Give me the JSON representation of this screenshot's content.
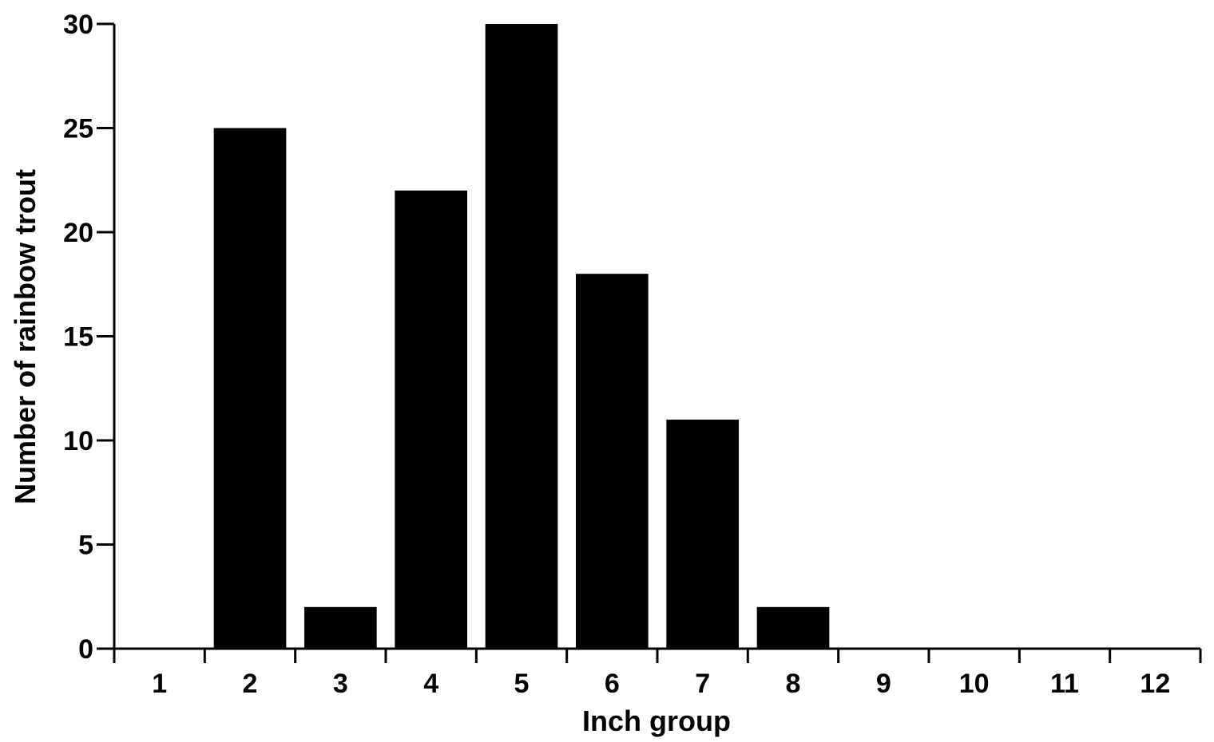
{
  "chart_data": {
    "type": "bar",
    "title": "",
    "xlabel": "Inch group",
    "ylabel": "Number of rainbow trout",
    "categories": [
      "1",
      "2",
      "3",
      "4",
      "5",
      "6",
      "7",
      "8",
      "9",
      "10",
      "11",
      "12"
    ],
    "values": [
      0,
      25,
      2,
      22,
      30,
      18,
      11,
      2,
      0,
      0,
      0,
      0
    ],
    "ylim": [
      0,
      30
    ],
    "yticks": [
      "0",
      "5",
      "10",
      "15",
      "20",
      "25",
      "30"
    ],
    "grid": false,
    "legend": "none",
    "bar_color": "#000000"
  }
}
